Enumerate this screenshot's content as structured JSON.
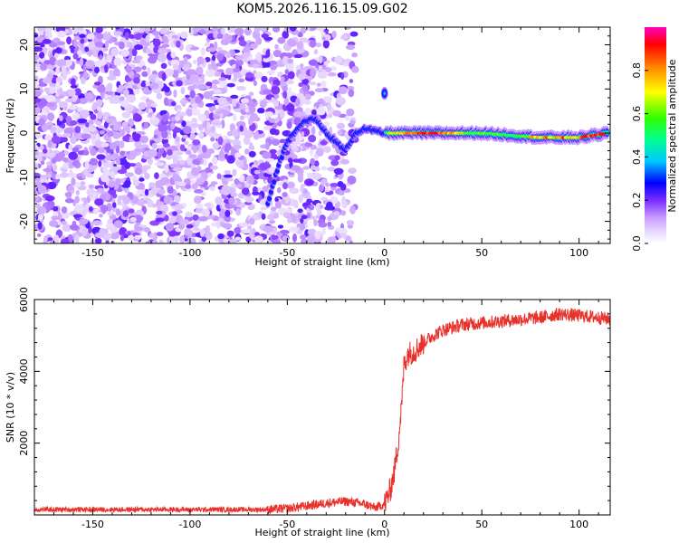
{
  "title": "KOM5.2026.116.15.09.G02",
  "chart_data": [
    {
      "type": "heatmap",
      "xlabel": "Height of straight line (km)",
      "ylabel": "Frequency (Hz)",
      "xlim": [
        -180,
        116
      ],
      "ylim": [
        -25,
        24
      ],
      "xticks": [
        -150,
        -100,
        -50,
        0,
        50,
        100
      ],
      "yticks": [
        -20,
        -10,
        0,
        10,
        20
      ],
      "colorbar": {
        "label": "Normalized spectral amplitude",
        "range": [
          0,
          1
        ],
        "ticks": [
          0.0,
          0.2,
          0.4,
          0.6,
          0.8
        ]
      },
      "features": {
        "noise_region_x": [
          -180,
          -15
        ],
        "signal_track": [
          {
            "x": -60,
            "y": -16
          },
          {
            "x": -55,
            "y": -8
          },
          {
            "x": -50,
            "y": -2
          },
          {
            "x": -45,
            "y": 1
          },
          {
            "x": -40,
            "y": 3
          },
          {
            "x": -35,
            "y": 3
          },
          {
            "x": -30,
            "y": 0
          },
          {
            "x": -25,
            "y": -2
          },
          {
            "x": -20,
            "y": -4
          },
          {
            "x": -15,
            "y": 0
          },
          {
            "x": -10,
            "y": 1
          },
          {
            "x": 0,
            "y": 0
          },
          {
            "x": 20,
            "y": 0
          },
          {
            "x": 50,
            "y": 0
          },
          {
            "x": 80,
            "y": -1
          },
          {
            "x": 100,
            "y": -1
          },
          {
            "x": 115,
            "y": 0
          }
        ],
        "peak_segment_x": [
          0,
          115
        ],
        "isolated_blob": {
          "x": 0,
          "y": 9
        }
      }
    },
    {
      "type": "line",
      "xlabel": "Height of straight line (km)",
      "ylabel": "SNR (10 * v/v)",
      "xlim": [
        -180,
        116
      ],
      "ylim": [
        0,
        6000
      ],
      "xticks": [
        -150,
        -100,
        -50,
        0,
        50,
        100
      ],
      "yticks": [
        2000,
        4000,
        6000
      ],
      "color": "#e8312a",
      "series": [
        {
          "x": [
            -180,
            -100,
            -60,
            -50,
            -40,
            -30,
            -20,
            -10,
            -5,
            0,
            3,
            5,
            7,
            9,
            10,
            12,
            15,
            20,
            25,
            30,
            40,
            50,
            60,
            70,
            80,
            90,
            100,
            110,
            116
          ],
          "values": [
            150,
            150,
            150,
            180,
            250,
            330,
            380,
            300,
            200,
            300,
            700,
            1200,
            2000,
            3200,
            4200,
            4500,
            4550,
            4800,
            5000,
            5150,
            5300,
            5350,
            5400,
            5450,
            5500,
            5600,
            5550,
            5500,
            5450
          ]
        }
      ]
    }
  ]
}
